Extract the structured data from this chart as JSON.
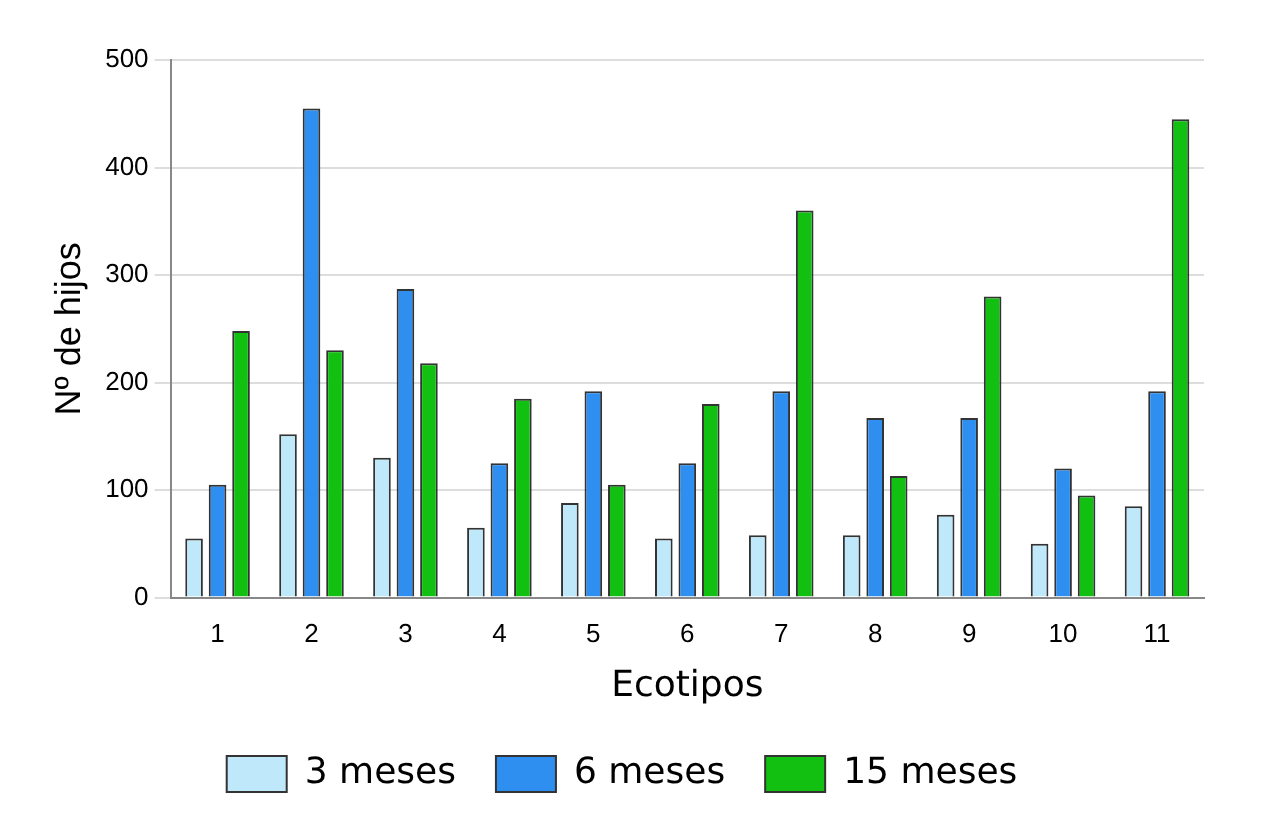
{
  "chart_data": {
    "type": "bar",
    "xlabel": "Ecotipos",
    "ylabel": "Nº de hijos",
    "categories": [
      "1",
      "2",
      "3",
      "4",
      "5",
      "6",
      "7",
      "8",
      "9",
      "10",
      "11"
    ],
    "series": [
      {
        "name": "3 meses",
        "color": "#bfe9fb",
        "values": [
          55,
          152,
          130,
          65,
          88,
          55,
          58,
          58,
          77,
          50,
          85
        ]
      },
      {
        "name": "6 meses",
        "color": "#2e8ff0",
        "values": [
          105,
          455,
          287,
          125,
          192,
          125,
          192,
          167,
          167,
          120,
          192
        ]
      },
      {
        "name": "15 meses",
        "color": "#12c012",
        "values": [
          248,
          230,
          218,
          185,
          105,
          180,
          360,
          113,
          280,
          95,
          445
        ]
      }
    ],
    "ylim": [
      0,
      500
    ],
    "yticks": [
      0,
      100,
      200,
      300,
      400,
      500
    ],
    "grid": "y",
    "legend": "bottom"
  }
}
